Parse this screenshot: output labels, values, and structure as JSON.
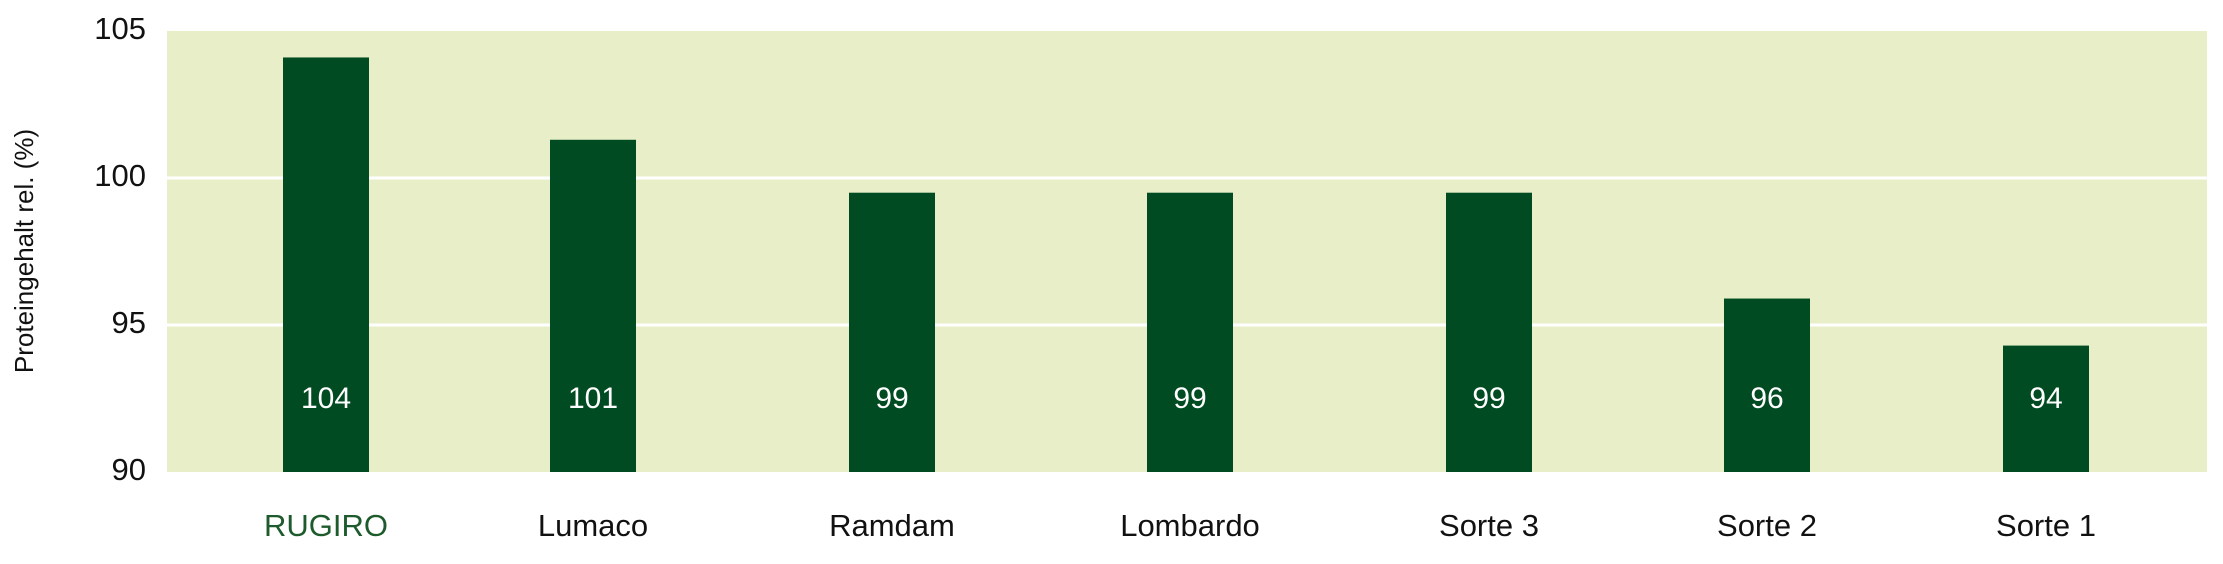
{
  "chart_data": {
    "type": "bar",
    "y_label": "Proteingehalt rel. (%)",
    "categories": [
      "RUGIRO",
      "Lumaco",
      "Ramdam",
      "Lombardo",
      "Sorte 3",
      "Sorte 2",
      "Sorte 1"
    ],
    "category_colors": [
      "#1d5a2c",
      "#111111",
      "#111111",
      "#111111",
      "#111111",
      "#111111",
      "#111111"
    ],
    "values": [
      104.1,
      101.3,
      99.5,
      99.5,
      99.5,
      95.9,
      94.3
    ],
    "value_labels": [
      "104",
      "101",
      "99",
      "99",
      "99",
      "96",
      "94"
    ],
    "color": "#004b22",
    "background": "#e8efc8",
    "ylim": [
      90,
      105
    ],
    "yticks": [
      90,
      95,
      100,
      105
    ],
    "grid": true
  }
}
